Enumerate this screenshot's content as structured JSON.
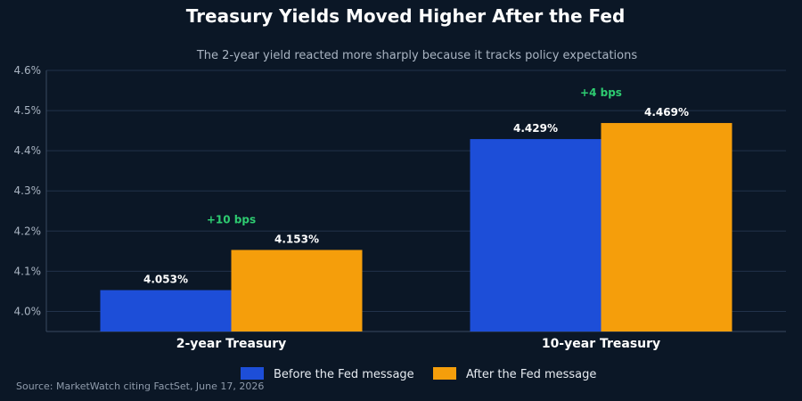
{
  "chart_data": {
    "type": "bar",
    "title": "Treasury Yields Moved Higher After the Fed",
    "subtitle": "The 2-year yield reacted more sharply because it tracks policy expectations",
    "categories": [
      "2-year Treasury",
      "10-year Treasury"
    ],
    "series": [
      {
        "name": "Before the Fed message",
        "color": "#1d4ed8",
        "values": [
          4.053,
          4.429
        ],
        "labels": [
          "4.053%",
          "4.429%"
        ]
      },
      {
        "name": "After the Fed message",
        "color": "#f59e0b",
        "values": [
          4.153,
          4.469
        ],
        "labels": [
          "4.153%",
          "4.469%"
        ]
      }
    ],
    "annotations": [
      "+10 bps",
      "+4 bps"
    ],
    "annotation_color": "#2ecc71",
    "ylim": [
      3.95,
      4.6
    ],
    "yticks": [
      4.0,
      4.1,
      4.2,
      4.3,
      4.4,
      4.5,
      4.6
    ],
    "ytick_labels": [
      "4.0%",
      "4.1%",
      "4.2%",
      "4.3%",
      "4.4%",
      "4.5%",
      "4.6%"
    ],
    "xlabel": "",
    "ylabel": "",
    "grid": true,
    "legend_position": "bottom-center",
    "source": "Source: MarketWatch citing FactSet, June 17, 2026"
  }
}
